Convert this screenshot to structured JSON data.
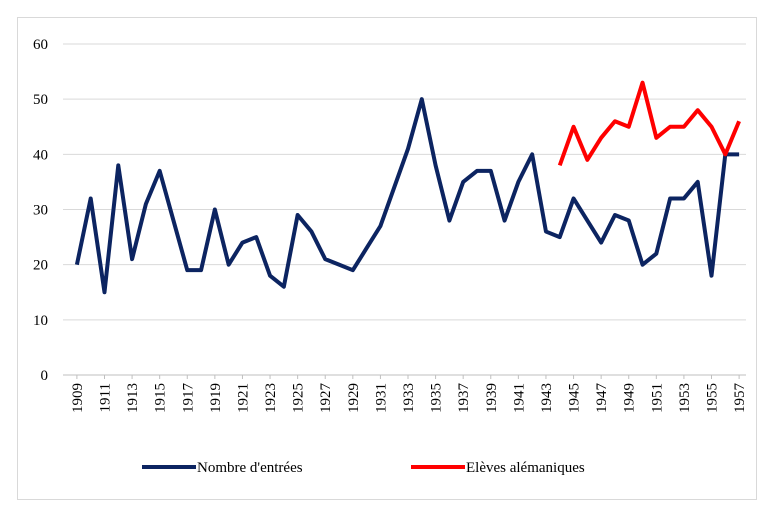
{
  "chart_data": {
    "type": "line",
    "x": [
      1909,
      1910,
      1911,
      1912,
      1913,
      1914,
      1915,
      1916,
      1917,
      1918,
      1919,
      1920,
      1921,
      1922,
      1923,
      1924,
      1925,
      1926,
      1927,
      1928,
      1929,
      1930,
      1931,
      1932,
      1933,
      1934,
      1935,
      1936,
      1937,
      1938,
      1939,
      1940,
      1941,
      1942,
      1943,
      1944,
      1945,
      1946,
      1947,
      1948,
      1949,
      1950,
      1951,
      1952,
      1953,
      1954,
      1955,
      1956,
      1957
    ],
    "series": [
      {
        "name": "Nombre d'entrées",
        "color": "#0c2461",
        "values": [
          20,
          32,
          15,
          38,
          21,
          31,
          37,
          28,
          19,
          19,
          30,
          20,
          24,
          25,
          18,
          16,
          29,
          26,
          21,
          20,
          19,
          23,
          27,
          34,
          41,
          50,
          38,
          28,
          35,
          37,
          37,
          28,
          35,
          40,
          26,
          25,
          32,
          28,
          24,
          29,
          28,
          20,
          22,
          32,
          32,
          35,
          18,
          40,
          40
        ]
      },
      {
        "name": "Elèves alémaniques",
        "color": "#ff0000",
        "values": [
          null,
          null,
          null,
          null,
          null,
          null,
          null,
          null,
          null,
          null,
          null,
          null,
          null,
          null,
          null,
          null,
          null,
          null,
          null,
          null,
          null,
          null,
          null,
          null,
          null,
          null,
          null,
          null,
          null,
          null,
          null,
          null,
          null,
          null,
          null,
          38,
          45,
          39,
          43,
          46,
          45,
          53,
          43,
          45,
          45,
          48,
          45,
          40,
          46
        ]
      }
    ],
    "xlim": [
      1908.5,
      1957.5
    ],
    "xticks": [
      1909,
      1911,
      1913,
      1915,
      1917,
      1919,
      1921,
      1923,
      1925,
      1927,
      1929,
      1931,
      1933,
      1935,
      1937,
      1939,
      1941,
      1943,
      1945,
      1947,
      1949,
      1951,
      1953,
      1955,
      1957
    ],
    "ylim": [
      0,
      60
    ],
    "yticks": [
      0,
      10,
      20,
      30,
      40,
      50,
      60
    ],
    "grid": true,
    "legend": "bottom"
  }
}
